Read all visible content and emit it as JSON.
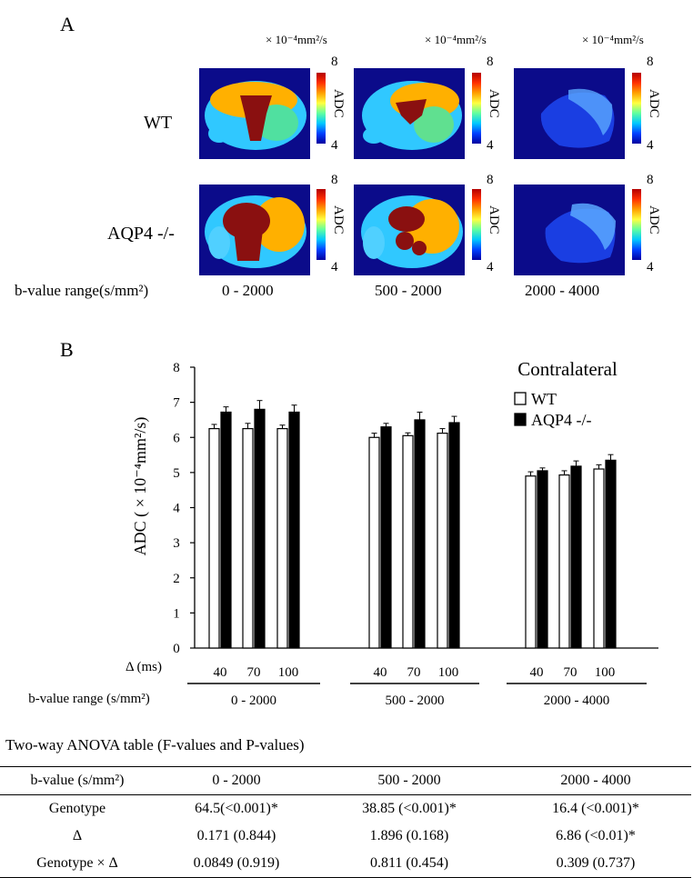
{
  "panelA": {
    "letter": "A",
    "unit_label": "× 10⁻⁴mm²/s",
    "colorbar": {
      "max": "8",
      "min": "4",
      "label": "ADC"
    },
    "rows": [
      "WT",
      "AQP4 -/-"
    ],
    "bvalue_caption": "b-value range(s/mm²)",
    "columns": [
      "0 - 2000",
      "500 - 2000",
      "2000 - 4000"
    ]
  },
  "panelB": {
    "letter": "B",
    "ylabel": "ADC ( × 10⁻⁴mm²/s)",
    "legend_title": "Contralateral",
    "delta_label": "Δ (ms)",
    "bvalue_label": "b-value range (s/mm²)"
  },
  "chart_data": {
    "type": "bar",
    "title": "Contralateral",
    "ylim": [
      0,
      8
    ],
    "yticks": [
      "0",
      "1",
      "2",
      "3",
      "4",
      "5",
      "6",
      "7",
      "8"
    ],
    "groups": [
      "0 - 2000",
      "500 - 2000",
      "2000 - 4000"
    ],
    "categories": [
      "40",
      "70",
      "100",
      "40",
      "70",
      "100",
      "40",
      "70",
      "100"
    ],
    "series": [
      {
        "name": "WT",
        "color": "#ffffff",
        "values": [
          6.25,
          6.25,
          6.25,
          6.0,
          6.05,
          6.12,
          4.9,
          4.93,
          5.1
        ],
        "errors": [
          0.12,
          0.15,
          0.1,
          0.12,
          0.08,
          0.13,
          0.12,
          0.12,
          0.12
        ]
      },
      {
        "name": "AQP4 -/-",
        "color": "#000000",
        "values": [
          6.72,
          6.8,
          6.72,
          6.3,
          6.5,
          6.42,
          5.05,
          5.18,
          5.35
        ],
        "errors": [
          0.15,
          0.25,
          0.2,
          0.1,
          0.22,
          0.18,
          0.08,
          0.15,
          0.16
        ]
      }
    ]
  },
  "anova": {
    "caption": "Two-way ANOVA table (F-values and P-values)",
    "header": [
      "b-value (s/mm²)",
      "0 - 2000",
      "500 - 2000",
      "2000 - 4000"
    ],
    "rows": [
      [
        "Genotype",
        "64.5(<0.001)*",
        "38.85 (<0.001)*",
        "16.4 (<0.001)*"
      ],
      [
        "Δ",
        "0.171 (0.844)",
        "1.896 (0.168)",
        "6.86 (<0.01)*"
      ],
      [
        "Genotype × Δ",
        "0.0849 (0.919)",
        "0.811 (0.454)",
        "0.309 (0.737)"
      ]
    ]
  }
}
